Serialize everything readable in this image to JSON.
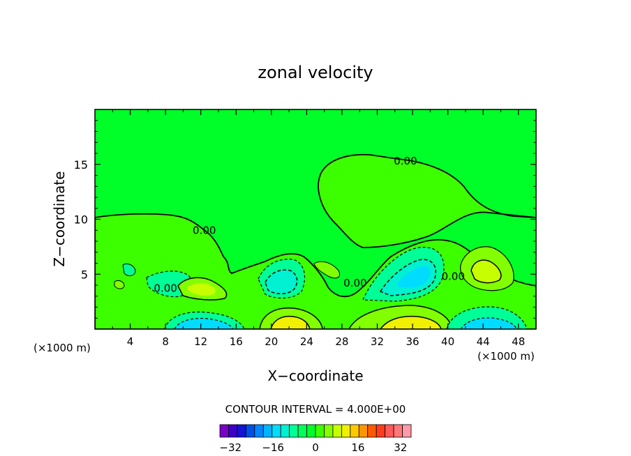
{
  "chart_data": {
    "type": "contour",
    "title": "zonal velocity",
    "xlabel": "X−coordinate",
    "ylabel": "Z−coordinate",
    "x_unit_left": "(×1000 m)",
    "x_unit_right": "(×1000 m)",
    "xlim": [
      0,
      50
    ],
    "ylim": [
      0,
      20
    ],
    "x_ticks": [
      4,
      8,
      12,
      16,
      20,
      24,
      28,
      32,
      36,
      40,
      44,
      48
    ],
    "y_ticks": [
      5,
      10,
      15
    ],
    "contour_interval_text": "CONTOUR INTERVAL = 4.000E+00",
    "contour_labels": [
      {
        "text": "0.00",
        "x": 35.2,
        "y": 15.3
      },
      {
        "text": "0.00",
        "x": 12.4,
        "y": 9.0
      },
      {
        "text": "0.00",
        "x": 8.0,
        "y": 3.7
      },
      {
        "text": "0.00",
        "x": 29.5,
        "y": 4.2
      },
      {
        "text": "0.00",
        "x": 40.6,
        "y": 4.8
      }
    ],
    "colorbar": {
      "levels": [
        -36,
        36
      ],
      "tick_labels": [
        "−32",
        "−16",
        "0",
        "16",
        "32"
      ],
      "tick_values": [
        -32,
        -16,
        0,
        16,
        32
      ],
      "colors": [
        "#7a00c8",
        "#3c00c8",
        "#1414d2",
        "#0050e6",
        "#0087ff",
        "#00b4ff",
        "#00dcff",
        "#00f0d2",
        "#00ff96",
        "#00ff5a",
        "#00ff28",
        "#3cff00",
        "#82ff00",
        "#c8ff00",
        "#f0f000",
        "#ffc800",
        "#ff9600",
        "#ff5a00",
        "#ff3c1e",
        "#ff5a5a",
        "#ff7878",
        "#ff9aa8"
      ]
    }
  }
}
